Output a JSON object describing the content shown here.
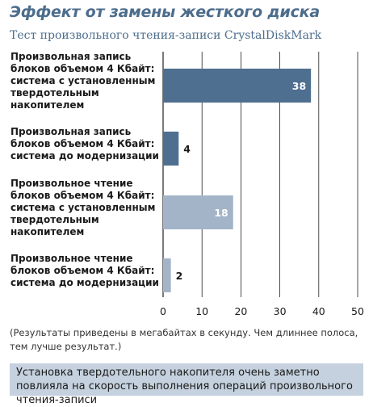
{
  "header": {
    "title": "Эффект от замены жесткого диска",
    "subtitle": "Тест произвольного чтения-записи CrystalDiskMark"
  },
  "chart_data": {
    "type": "bar",
    "orientation": "horizontal",
    "categories": [
      [
        "Произвольная запись",
        "блоков объемом 4 Кбайт:",
        "система с установленным",
        "твердотельным",
        "накопителем"
      ],
      [
        "Произвольная запись",
        "блоков объемом 4 Кбайт:",
        "система до модернизации"
      ],
      [
        "Произвольное чтение",
        "блоков объемом 4 Кбайт:",
        "система с установленным",
        "твердотельным",
        "накопителем"
      ],
      [
        "Произвольное чтение",
        "блоков объемом 4 Кбайт:",
        "система до модернизации"
      ]
    ],
    "values": [
      38,
      4,
      18,
      2
    ],
    "value_labels": [
      "38",
      "4",
      "18",
      "2"
    ],
    "bar_colors": [
      "#4f6f90",
      "#4f6f90",
      "#a3b4c8",
      "#a3b4c8"
    ],
    "xlim": [
      0,
      50
    ],
    "xticks": [
      "0",
      "10",
      "20",
      "30",
      "40",
      "50"
    ],
    "grid": true
  },
  "footnote": "(Результаты приведены в мегабайтах в секунду. Чем длиннее полоса, тем лучше результат.)",
  "callout": "Установка твердотельного накопителя очень заметно повлияла на скорость выполнения операций произвольного чтения-записи",
  "colors": {
    "title": "#4c6d8c",
    "dark_bar": "#4f6f90",
    "light_bar": "#a3b4c8",
    "callout_bg": "#c5d1de",
    "grid": "#222222"
  }
}
